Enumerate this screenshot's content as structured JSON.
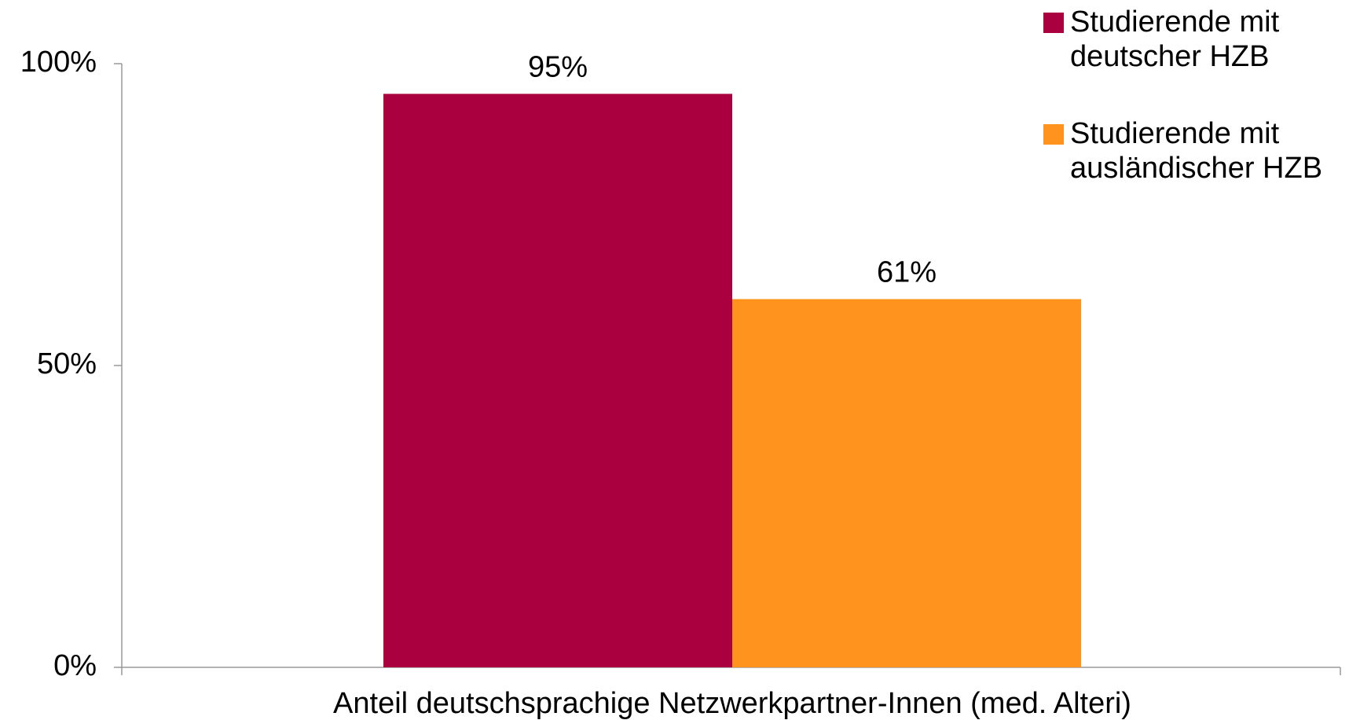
{
  "chart_data": {
    "type": "bar",
    "categories": [
      "Anteil deutschsprachige Netzwerkpartner-Innen (med. Alteri)"
    ],
    "series": [
      {
        "name": "Studierende mit deutscher HZB",
        "color": "#ab003f",
        "values": [
          95
        ],
        "value_labels": [
          "95%"
        ]
      },
      {
        "name": "Studierende mit ausländischer HZB",
        "color": "#ff931e",
        "values": [
          61
        ],
        "value_labels": [
          "61%"
        ]
      }
    ],
    "ylim": [
      0,
      100
    ],
    "yticks": [
      {
        "value": 0,
        "label": "0%"
      },
      {
        "value": 50,
        "label": "50%"
      },
      {
        "value": 100,
        "label": "100%"
      }
    ],
    "grid": false,
    "legend": "top-right"
  }
}
